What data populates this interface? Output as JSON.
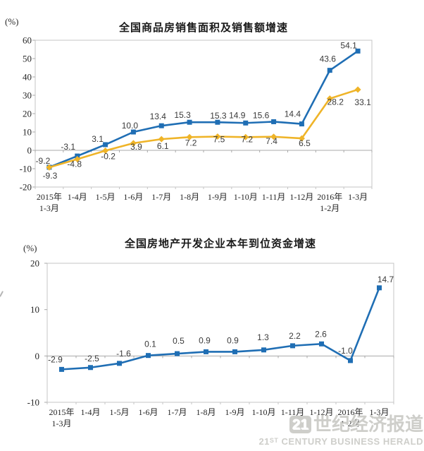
{
  "chart_data": [
    {
      "type": "line",
      "title": "全国商品房销售面积及销售额增速",
      "unit": "(%)",
      "ylim": [
        -20,
        60
      ],
      "yticks": [
        60,
        50,
        40,
        30,
        20,
        10,
        0,
        -10,
        -20
      ],
      "grid": "off",
      "legend": "none",
      "categories": [
        [
          "2015年",
          "1-3月"
        ],
        [
          "1-4月"
        ],
        [
          "1-5月"
        ],
        [
          "1-6月"
        ],
        [
          "1-7月"
        ],
        [
          "1-8月"
        ],
        [
          "1-9月"
        ],
        [
          "1-10月"
        ],
        [
          "1-11月"
        ],
        [
          "1-12月"
        ],
        [
          "2016年",
          "1-2月"
        ],
        [
          "1-3月"
        ]
      ],
      "series": [
        {
          "id": "blue",
          "color": "#1F6EB4",
          "marker": "square",
          "values": [
            -9.2,
            -3.1,
            3.1,
            10.0,
            13.4,
            15.3,
            15.3,
            14.9,
            15.6,
            14.4,
            43.6,
            54.1
          ],
          "labels": [
            "-9.2",
            "-3.1",
            "3.1",
            "10.0",
            "13.4",
            "15.3",
            "15.3",
            "14.9",
            "15.6",
            "14.4",
            "43.6",
            "54.1"
          ]
        },
        {
          "id": "gold",
          "color": "#EFB428",
          "marker": "diamond",
          "values": [
            -9.3,
            -4.8,
            -0.2,
            3.9,
            6.1,
            7.2,
            7.5,
            7.2,
            7.4,
            6.5,
            28.2,
            33.1
          ],
          "labels": [
            "-9.3",
            "-4.8",
            "-0.2",
            "3.9",
            "6.1",
            "7.2",
            "7.5",
            "7.2",
            "7.4",
            "6.5",
            "28.2",
            "33.1"
          ]
        }
      ]
    },
    {
      "type": "line",
      "title": "全国房地产开发企业本年到位资金增速",
      "unit": "(%)",
      "ylim": [
        -10,
        20
      ],
      "yticks": [
        20,
        10,
        0,
        -10
      ],
      "grid": "off",
      "legend": "none",
      "categories": [
        [
          "2015年",
          "1-3月"
        ],
        [
          "1-4月"
        ],
        [
          "1-5月"
        ],
        [
          "1-6月"
        ],
        [
          "1-7月"
        ],
        [
          "1-8月"
        ],
        [
          "1-9月"
        ],
        [
          "1-10月"
        ],
        [
          "1-11月"
        ],
        [
          "1-12月"
        ],
        [
          "2016年",
          "1-2月"
        ],
        [
          "1-3月"
        ]
      ],
      "series": [
        {
          "id": "blue",
          "color": "#1F6EB4",
          "marker": "square",
          "values": [
            -2.9,
            -2.5,
            -1.6,
            0.1,
            0.5,
            0.9,
            0.9,
            1.3,
            2.2,
            2.6,
            -1.0,
            14.7
          ],
          "labels": [
            "-2.9",
            "-2.5",
            "-1.6",
            "0.1",
            "0.5",
            "0.9",
            "0.9",
            "1.3",
            "2.2",
            "2.6",
            "-1.0",
            "14.7"
          ]
        }
      ]
    }
  ],
  "watermark": {
    "logo": "21",
    "cn": "世纪经济报道",
    "en_num": "21",
    "en_sup": "ST",
    "en_rest": " CENTURY BUSINESS HERALD"
  },
  "colors": {
    "plot_border": "#c4c4c4",
    "zero_axis": "#a8a8a8",
    "series_blue": "#1F6EB4",
    "series_gold": "#EFB428"
  }
}
